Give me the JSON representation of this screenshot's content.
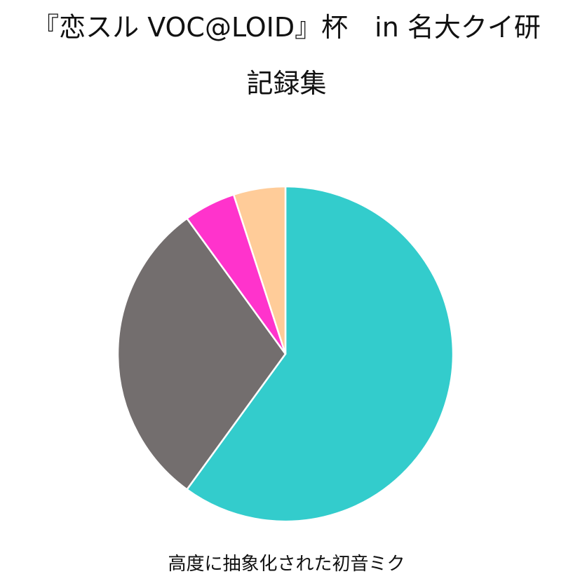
{
  "chart_data": {
    "type": "pie",
    "title": "『恋スル VOC@LOID』杯　in 名大クイ研",
    "subtitle": "記録集",
    "caption": "高度に抽象化された初音ミク",
    "start_angle_deg": 0,
    "direction": "clockwise",
    "slices": [
      {
        "value": 60,
        "color": "#33CCCC"
      },
      {
        "value": 30,
        "color": "#736E6E"
      },
      {
        "value": 5,
        "color": "#FF33CC"
      },
      {
        "value": 5,
        "color": "#FFCC99"
      }
    ],
    "border_color": "#FFFFFF",
    "legend": "none"
  }
}
